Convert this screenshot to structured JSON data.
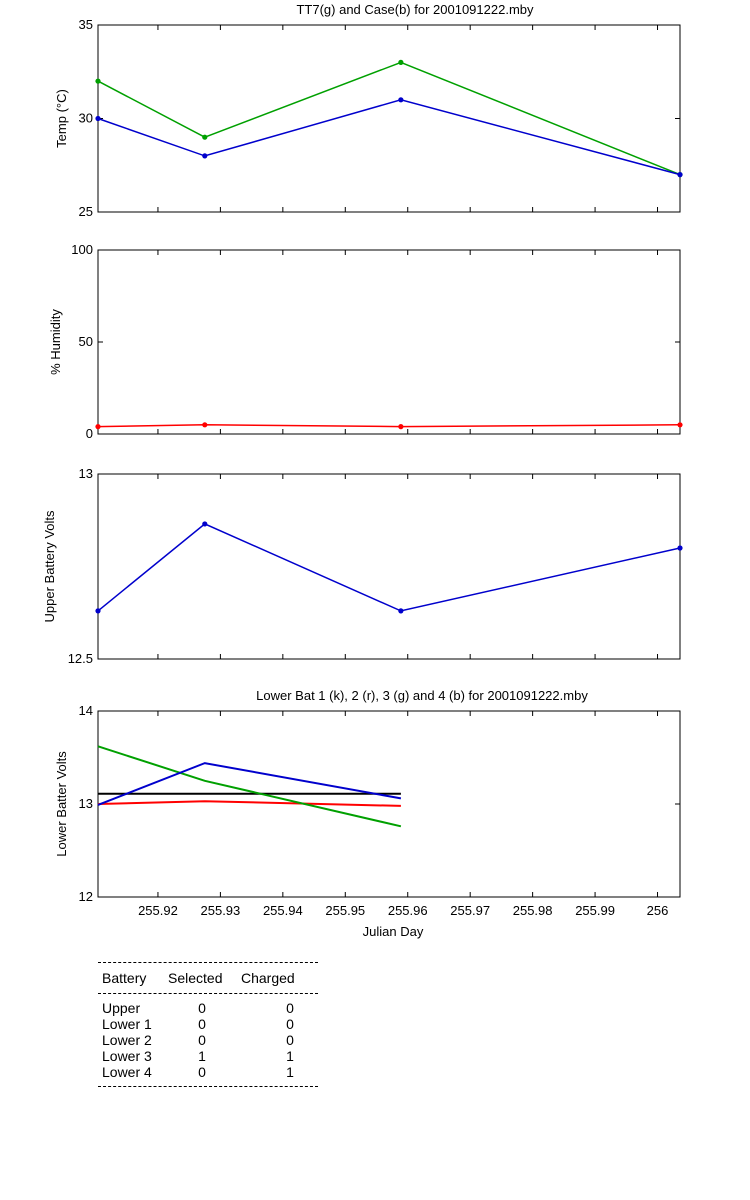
{
  "chart_data": [
    {
      "type": "line",
      "title": "TT7(g) and Case(b) for 2001091222.mby",
      "xlabel": "",
      "ylabel": "Temp  (°C)",
      "xlim": [
        255.9104,
        256.0036
      ],
      "ylim": [
        25,
        35
      ],
      "yticks": [
        25,
        30,
        35
      ],
      "x": [
        255.9104,
        255.9275,
        255.9589,
        256.0036
      ],
      "series": [
        {
          "color": "#00a000",
          "values": [
            32,
            29,
            33,
            27
          ]
        },
        {
          "color": "#0000cc",
          "values": [
            30,
            28,
            31,
            27
          ]
        }
      ]
    },
    {
      "type": "line",
      "title": "",
      "xlabel": "",
      "ylabel": "% Humidity",
      "xlim": [
        255.9104,
        256.0036
      ],
      "ylim": [
        0,
        100
      ],
      "yticks": [
        0,
        50,
        100
      ],
      "x": [
        255.9104,
        255.9275,
        255.9589,
        256.0036
      ],
      "series": [
        {
          "color": "#ff0000",
          "values": [
            4,
            5,
            4,
            5
          ]
        }
      ]
    },
    {
      "type": "line",
      "title": "",
      "xlabel": "",
      "ylabel": "Upper Battery Volts",
      "xlim": [
        255.9104,
        256.0036
      ],
      "ylim": [
        12.5,
        13
      ],
      "yticks": [
        12.5,
        13
      ],
      "x": [
        255.9104,
        255.9275,
        255.9589,
        256.0036
      ],
      "series": [
        {
          "color": "#0000cc",
          "values": [
            12.63,
            12.865,
            12.63,
            12.8
          ]
        }
      ]
    },
    {
      "type": "line",
      "title": "Lower Bat 1 (k), 2 (r), 3 (g) and 4 (b) for 2001091222.mby",
      "xlabel": "Julian Day",
      "ylabel": "Lower Batter Volts",
      "xlim": [
        255.9104,
        256.0036
      ],
      "ylim": [
        12,
        14
      ],
      "yticks": [
        12,
        13,
        14
      ],
      "xticks": [
        255.92,
        255.93,
        255.94,
        255.95,
        255.96,
        255.97,
        255.98,
        255.99,
        256
      ],
      "xtick_labels": [
        "255.92",
        "255.93",
        "255.94",
        "255.95",
        "255.96",
        "255.97",
        "255.98",
        "255.99",
        "256"
      ],
      "x": [
        255.9104,
        255.9275,
        255.9589
      ],
      "series": [
        {
          "color": "#000000",
          "values": [
            13.11,
            13.11,
            13.11
          ]
        },
        {
          "color": "#ff0000",
          "values": [
            13.0,
            13.03,
            12.98
          ]
        },
        {
          "color": "#00a000",
          "values": [
            13.62,
            13.25,
            12.76
          ]
        },
        {
          "color": "#0000cc",
          "values": [
            12.99,
            13.44,
            13.06
          ]
        }
      ]
    }
  ],
  "battery_table": {
    "headers": [
      "Battery",
      "Selected",
      "Charged"
    ],
    "rows": [
      [
        "Upper",
        "0",
        "0"
      ],
      [
        "Lower 1",
        "0",
        "0"
      ],
      [
        "Lower 2",
        "0",
        "0"
      ],
      [
        "Lower 3",
        "1",
        "1"
      ],
      [
        "Lower 4",
        "0",
        "1"
      ]
    ]
  }
}
